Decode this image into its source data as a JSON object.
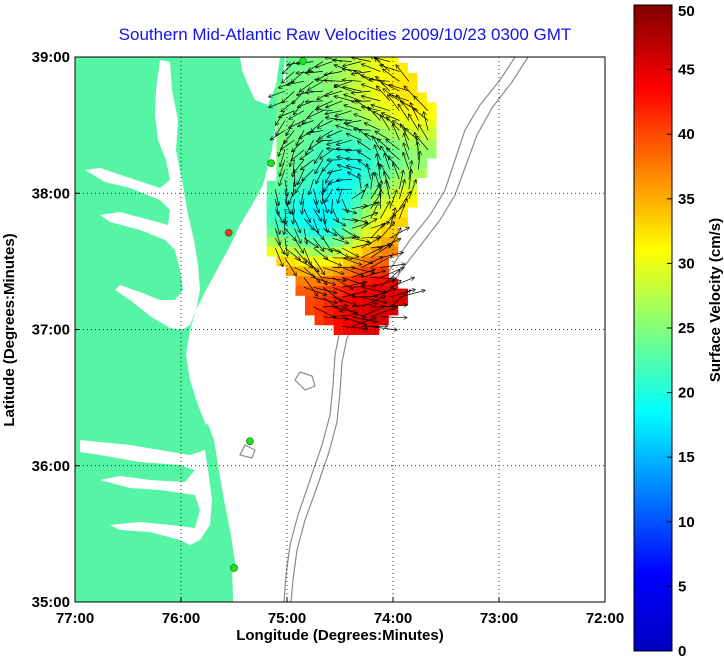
{
  "chart_data": {
    "type": "heatmap",
    "title": "Southern Mid-Atlantic Raw Velocities 2009/10/23 0300 GMT",
    "xlabel": "Longitude (Degrees:Minutes)",
    "ylabel": "Latitude (Degrees:Minutes)",
    "colorbar_label": "Surface Velocity (cm/s)",
    "xlim": [
      -77,
      -72
    ],
    "ylim": [
      35,
      39
    ],
    "x_ticks": [
      -77,
      -76,
      -75,
      -74,
      -73,
      -72
    ],
    "x_tick_labels": [
      "77:00",
      "76:00",
      "75:00",
      "74:00",
      "73:00",
      "72:00"
    ],
    "y_ticks": [
      35,
      36,
      37,
      38,
      39
    ],
    "y_tick_labels": [
      "35:00",
      "36:00",
      "37:00",
      "38:00",
      "39:00"
    ],
    "colorbar_range": [
      0,
      50
    ],
    "colorbar_ticks": [
      0,
      5,
      10,
      15,
      20,
      25,
      30,
      35,
      40,
      45,
      50
    ],
    "colorbar_tick_labels": [
      "0",
      "5",
      "10",
      "15",
      "20",
      "25",
      "30",
      "35",
      "40",
      "45",
      "50"
    ],
    "grid": true,
    "colormap": "jet",
    "colors": {
      "title": "#1414e6",
      "land": "#55f5a5",
      "bathymetry": "#8c8c8c",
      "station": "#22dd22",
      "station_red": "#ee3322",
      "arrows": "#000000"
    },
    "stations": [
      {
        "lon": -74.85,
        "lat": 38.97,
        "color": "station"
      },
      {
        "lon": -75.15,
        "lat": 38.22,
        "color": "station"
      },
      {
        "lon": -75.55,
        "lat": 37.71,
        "color": "station_red"
      },
      {
        "lon": -75.35,
        "lat": 36.18,
        "color": "station"
      },
      {
        "lon": -75.5,
        "lat": 35.25,
        "color": "station"
      }
    ],
    "velocity_field": {
      "grid_step_deg": 0.09,
      "regions": [
        {
          "lon": -74.05,
          "lat": 37.18,
          "radius_deg": 0.35,
          "speed_cm_s": 50
        },
        {
          "lon": -74.95,
          "lat": 37.5,
          "radius_deg": 0.2,
          "speed_cm_s": 47
        },
        {
          "lon": -73.95,
          "lat": 37.9,
          "radius_deg": 0.22,
          "speed_cm_s": 43
        },
        {
          "lon": -73.95,
          "lat": 38.7,
          "radius_deg": 0.25,
          "speed_cm_s": 37
        },
        {
          "lon": -74.3,
          "lat": 38.1,
          "radius_deg": 0.3,
          "speed_cm_s": 10
        },
        {
          "lon": -74.85,
          "lat": 37.75,
          "radius_deg": 0.2,
          "speed_cm_s": 8
        },
        {
          "lon": -74.6,
          "lat": 38.55,
          "radius_deg": 0.35,
          "speed_cm_s": 26
        },
        {
          "lon": -74.95,
          "lat": 38.1,
          "radius_deg": 0.25,
          "speed_cm_s": 28
        }
      ],
      "base_speed_cm_s": 20
    }
  }
}
